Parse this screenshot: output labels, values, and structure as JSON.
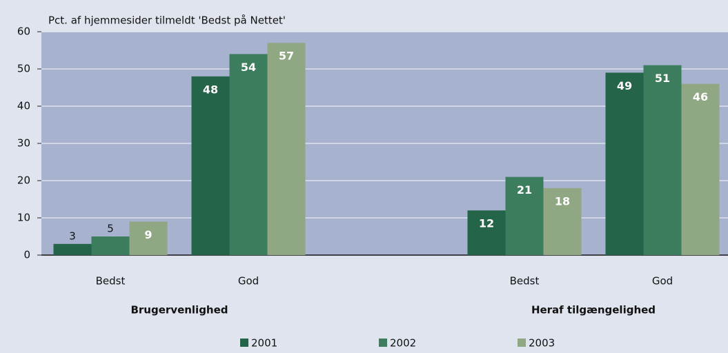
{
  "chart_data": {
    "type": "bar",
    "ylabel": "Pct. af hjemmesider tilmeldt 'Bedst på Nettet'",
    "categories": [
      "Bedst",
      "God",
      null,
      "Bedst",
      "God"
    ],
    "group_labels": [
      "Brugervenlighed",
      "Heraf tilgængelighed"
    ],
    "series": [
      {
        "name": "2001",
        "color": "#246449",
        "values": [
          3,
          48,
          null,
          12,
          49
        ]
      },
      {
        "name": "2002",
        "color": "#3b7d5c",
        "values": [
          5,
          54,
          null,
          21,
          51
        ]
      },
      {
        "name": "2003",
        "color": "#8fa783",
        "values": [
          9,
          57,
          null,
          18,
          46
        ]
      }
    ],
    "ylim": [
      0,
      60
    ],
    "yticks": [
      0,
      10,
      20,
      30,
      40,
      50,
      60
    ],
    "grid": true,
    "legend": "bottom"
  }
}
